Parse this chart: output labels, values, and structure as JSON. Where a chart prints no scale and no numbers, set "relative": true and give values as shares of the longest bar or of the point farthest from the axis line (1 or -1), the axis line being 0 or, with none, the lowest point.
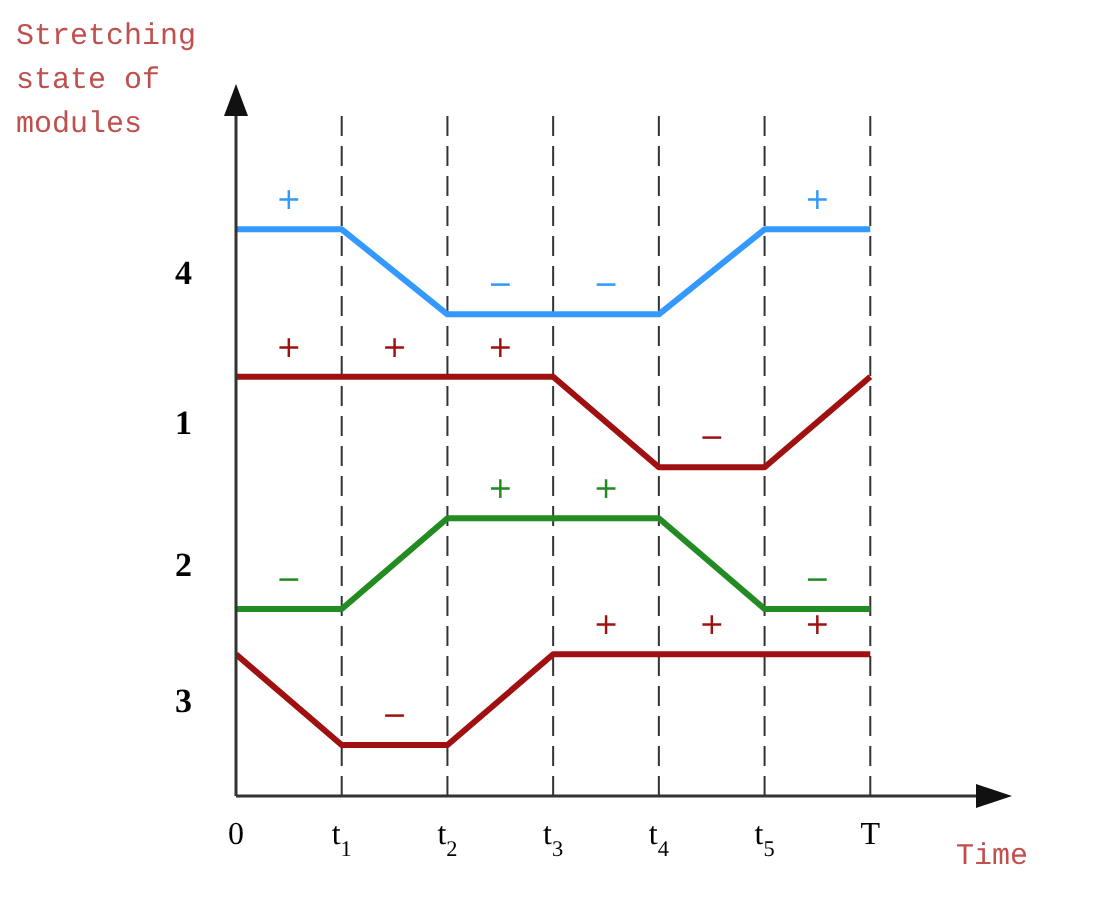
{
  "chart_data": {
    "type": "line",
    "xlabel": "Time",
    "ylabel": "Stretching state of modules",
    "relative": true,
    "x": [
      0,
      1,
      2,
      3,
      4,
      5,
      6
    ],
    "series": [
      {
        "name": "4",
        "color": "#3399ff",
        "values": [
          1,
          1,
          0.85,
          0.85,
          0.85,
          1,
          1
        ]
      },
      {
        "name": "1",
        "color": "#a01010",
        "values": [
          0.74,
          0.74,
          0.74,
          0.74,
          0.58,
          0.58,
          0.74
        ]
      },
      {
        "name": "2",
        "color": "#228b22",
        "values": [
          0.33,
          0.33,
          0.49,
          0.49,
          0.49,
          0.33,
          0.33
        ]
      },
      {
        "name": "3",
        "color": "#a01010",
        "values": [
          0.25,
          0.09,
          0.09,
          0.25,
          0.25,
          0.25,
          0.25
        ]
      }
    ],
    "xlim": [
      0,
      7
    ],
    "xticks": [
      0,
      {
        "value": 1,
        "label": "t$_{1}$"
      },
      {
        "value": 2,
        "label": "t$_{2}$"
      },
      {
        "value": 3,
        "label": "t$_{3}$"
      },
      {
        "value": 4,
        "label": "t$_{4}$"
      },
      {
        "value": 5,
        "label": "t$_{5}$"
      },
      {
        "value": 6,
        "label": "T"
      }
    ],
    "grid": "x",
    "annotations": [
      {
        "text": "+",
        "x": 0.5,
        "y": 1
      },
      {
        "text": "−",
        "x": 2.5,
        "y": 0.85
      },
      {
        "text": "−",
        "x": 3.5,
        "y": 0.85
      },
      {
        "text": "+",
        "x": 5.5,
        "y": 1
      },
      {
        "text": "+",
        "x": 0.5,
        "y": 0.74
      },
      {
        "text": "+",
        "x": 1.5,
        "y": 0.74
      },
      {
        "text": "+",
        "x": 2.5,
        "y": 0.74
      },
      {
        "text": "−",
        "x": 4.5,
        "y": 0.58
      },
      {
        "text": "+",
        "x": 2.5,
        "y": 0.49
      },
      {
        "text": "+",
        "x": 3.5,
        "y": 0.49
      },
      {
        "text": "−",
        "x": 0.5,
        "y": 0.33
      },
      {
        "text": "−",
        "x": 5.5,
        "y": 0.33
      },
      {
        "text": "−",
        "x": 1.5,
        "y": 0.09
      },
      {
        "text": "+",
        "x": 3.5,
        "y": 0.25
      },
      {
        "text": "+",
        "x": 4.5,
        "y": 0.25
      },
      {
        "text": "+",
        "x": 5.5,
        "y": 0.25
      }
    ]
  }
}
